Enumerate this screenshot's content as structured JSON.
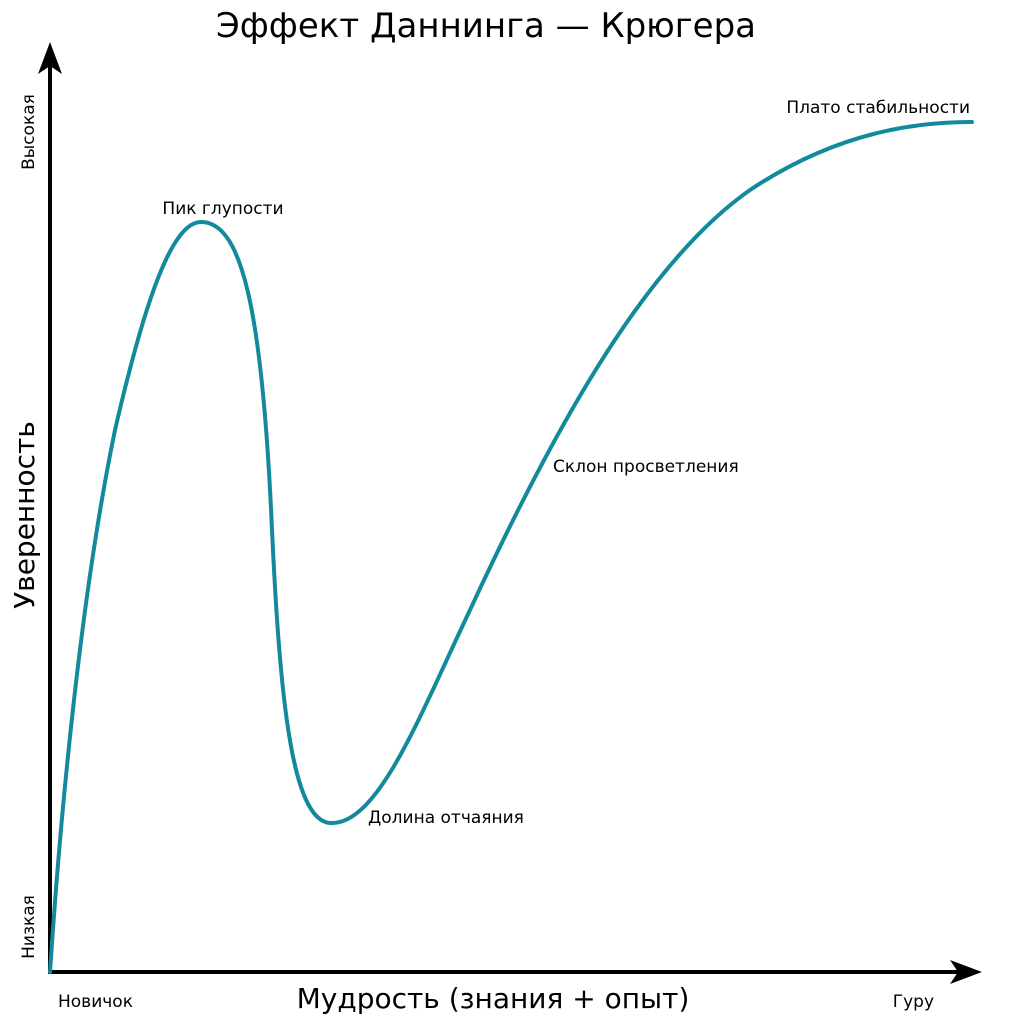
{
  "title": "Эффект Даннинга — Крюгера",
  "x_axis": {
    "label": "Мудрость (знания + опыт)",
    "min_label": "Новичок",
    "max_label": "Гуру"
  },
  "y_axis": {
    "label": "Уверенность",
    "min_label": "Низкая",
    "max_label": "Высокая"
  },
  "curve": {
    "color": "#138a9c",
    "annotations": {
      "peak": "Пик глупости",
      "valley": "Долина отчаяния",
      "slope": "Склон просветления",
      "plateau": "Плато стабильности"
    }
  },
  "colors": {
    "axis": "#000000",
    "text": "#000000",
    "background": "#ffffff"
  }
}
